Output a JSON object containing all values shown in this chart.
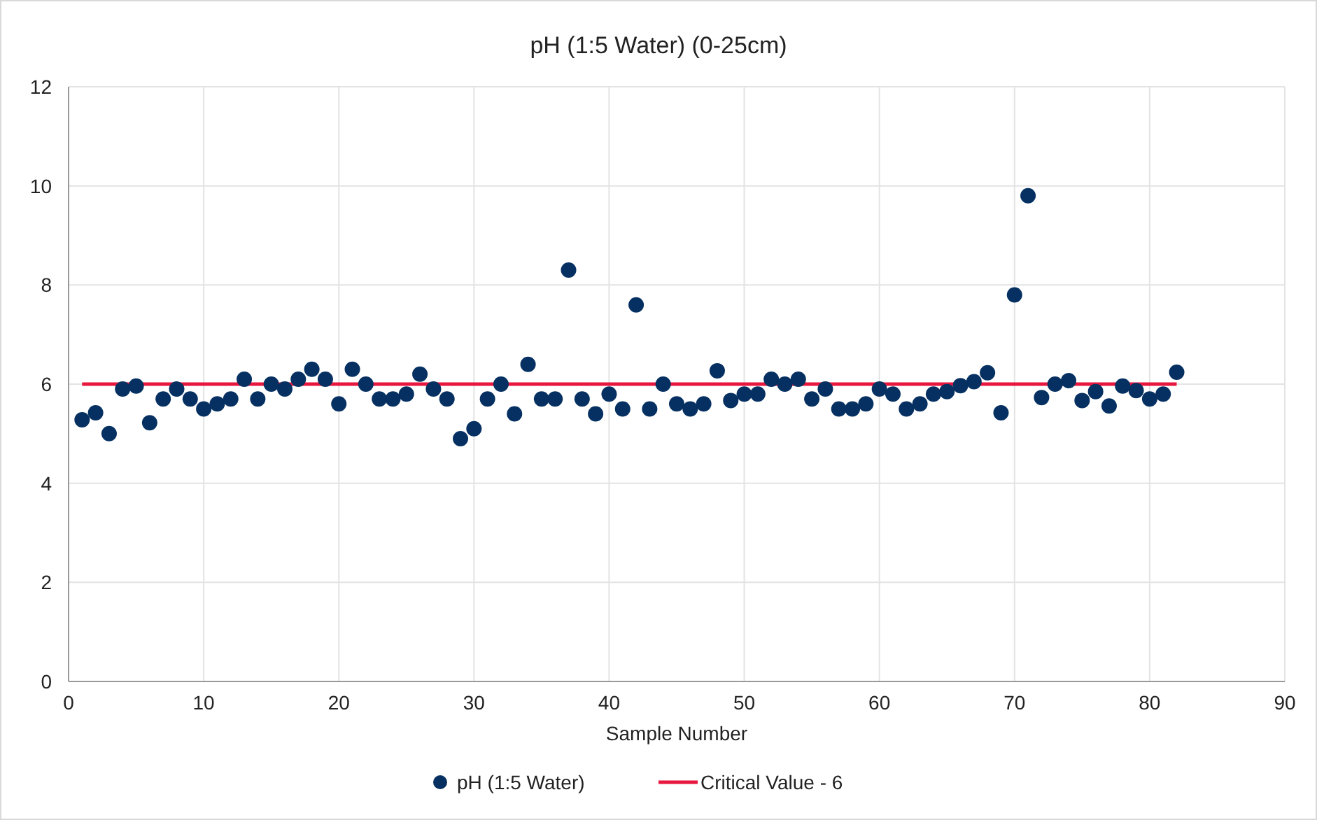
{
  "chart_data": {
    "type": "scatter",
    "title": "pH (1:5 Water) (0-25cm)",
    "xlabel": "Sample Number",
    "x": [
      1,
      2,
      3,
      4,
      5,
      6,
      7,
      8,
      9,
      10,
      11,
      12,
      13,
      14,
      15,
      16,
      17,
      18,
      19,
      20,
      21,
      22,
      23,
      24,
      25,
      26,
      27,
      28,
      29,
      30,
      31,
      32,
      33,
      34,
      35,
      36,
      37,
      38,
      39,
      40,
      41,
      42,
      43,
      44,
      45,
      46,
      47,
      48,
      49,
      50,
      51,
      52,
      53,
      54,
      55,
      56,
      57,
      58,
      59,
      60,
      61,
      62,
      63,
      64,
      65,
      66,
      67,
      68,
      69,
      70,
      71,
      72,
      73,
      74,
      75,
      76,
      77,
      78,
      79,
      80,
      81,
      82
    ],
    "series": [
      {
        "name": "pH (1:5 Water)",
        "color": "#053061",
        "marker": "circle",
        "values": [
          5.28,
          5.42,
          5.0,
          5.9,
          5.96,
          5.22,
          5.7,
          5.9,
          5.7,
          5.5,
          5.6,
          5.7,
          6.1,
          5.7,
          6.0,
          5.9,
          6.1,
          6.3,
          6.1,
          5.6,
          6.3,
          6.0,
          5.7,
          5.7,
          5.8,
          6.2,
          5.9,
          5.7,
          4.9,
          5.1,
          5.7,
          6.0,
          5.4,
          6.4,
          5.7,
          5.7,
          8.3,
          5.7,
          5.4,
          5.8,
          5.5,
          7.6,
          5.5,
          6.0,
          5.6,
          5.5,
          5.6,
          6.27,
          5.67,
          5.8,
          5.8,
          6.1,
          6.0,
          6.1,
          5.7,
          5.9,
          5.5,
          5.5,
          5.6,
          5.9,
          5.8,
          5.5,
          5.6,
          5.8,
          5.85,
          5.97,
          6.05,
          6.23,
          5.42,
          7.8,
          9.8,
          5.73,
          6.0,
          6.07,
          5.67,
          5.85,
          5.56,
          5.96,
          5.87,
          5.7,
          5.8,
          6.24
        ]
      },
      {
        "name": "Critical Value - 6",
        "type": "line",
        "color": "#e8173f",
        "x": [
          1,
          82
        ],
        "values": [
          6,
          6
        ],
        "line_style": "solid"
      }
    ],
    "xlim": [
      0,
      90
    ],
    "xticks": [
      0,
      10,
      20,
      30,
      40,
      50,
      60,
      70,
      80,
      90
    ],
    "ylim": [
      0,
      12
    ],
    "yticks": [
      0,
      2,
      4,
      6,
      8,
      10,
      12
    ],
    "grid": true,
    "legend": "bottom"
  }
}
